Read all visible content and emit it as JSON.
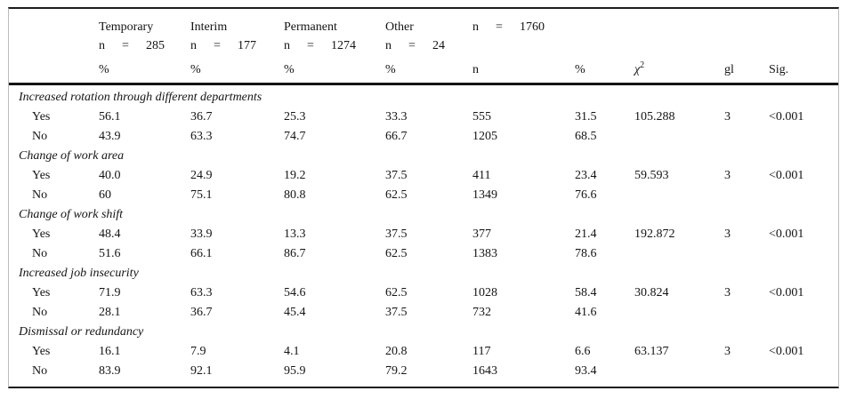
{
  "table": {
    "columns": {
      "groups": [
        {
          "label": "Temporary",
          "n_label": "n",
          "eq": "=",
          "n_value": "285"
        },
        {
          "label": "Interim",
          "n_label": "n",
          "eq": "=",
          "n_value": "177"
        },
        {
          "label": "Permanent",
          "n_label": "n",
          "eq": "=",
          "n_value": "1274"
        },
        {
          "label": "Other",
          "n_label": "n",
          "eq": "=",
          "n_value": "24"
        }
      ],
      "total": {
        "n_label": "n",
        "eq": "=",
        "n_value": "1760"
      },
      "subheader": {
        "pct1": "%",
        "pct2": "%",
        "pct3": "%",
        "pct4": "%",
        "n": "n",
        "pct_total": "%",
        "chi_symbol": "χ",
        "chi_sup": "2",
        "gl": "gl",
        "sig": "Sig."
      }
    },
    "sections": [
      {
        "title": "Increased rotation through different departments",
        "rows": [
          {
            "label": "Yes",
            "temporary": "56.1",
            "interim": "36.7",
            "permanent": "25.3",
            "other": "33.3",
            "n": "555",
            "pct": "31.5",
            "chi2": "105.288",
            "gl": "3",
            "sig": "<0.001"
          },
          {
            "label": "No",
            "temporary": "43.9",
            "interim": "63.3",
            "permanent": "74.7",
            "other": "66.7",
            "n": "1205",
            "pct": "68.5",
            "chi2": "",
            "gl": "",
            "sig": ""
          }
        ]
      },
      {
        "title": "Change of work area",
        "rows": [
          {
            "label": "Yes",
            "temporary": "40.0",
            "interim": "24.9",
            "permanent": "19.2",
            "other": "37.5",
            "n": "411",
            "pct": "23.4",
            "chi2": "59.593",
            "gl": "3",
            "sig": "<0.001"
          },
          {
            "label": "No",
            "temporary": "60",
            "interim": "75.1",
            "permanent": "80.8",
            "other": "62.5",
            "n": "1349",
            "pct": "76.6",
            "chi2": "",
            "gl": "",
            "sig": ""
          }
        ]
      },
      {
        "title": "Change of work shift",
        "rows": [
          {
            "label": "Yes",
            "temporary": "48.4",
            "interim": "33.9",
            "permanent": "13.3",
            "other": "37.5",
            "n": "377",
            "pct": "21.4",
            "chi2": "192.872",
            "gl": "3",
            "sig": "<0.001"
          },
          {
            "label": "No",
            "temporary": "51.6",
            "interim": "66.1",
            "permanent": "86.7",
            "other": "62.5",
            "n": "1383",
            "pct": "78.6",
            "chi2": "",
            "gl": "",
            "sig": ""
          }
        ]
      },
      {
        "title": "Increased job insecurity",
        "rows": [
          {
            "label": "Yes",
            "temporary": "71.9",
            "interim": "63.3",
            "permanent": "54.6",
            "other": "62.5",
            "n": "1028",
            "pct": "58.4",
            "chi2": "30.824",
            "gl": "3",
            "sig": "<0.001"
          },
          {
            "label": "No",
            "temporary": "28.1",
            "interim": "36.7",
            "permanent": "45.4",
            "other": "37.5",
            "n": "732",
            "pct": "41.6",
            "chi2": "",
            "gl": "",
            "sig": ""
          }
        ]
      },
      {
        "title": "Dismissal or redundancy",
        "rows": [
          {
            "label": "Yes",
            "temporary": "16.1",
            "interim": "7.9",
            "permanent": "4.1",
            "other": "20.8",
            "n": "117",
            "pct": "6.6",
            "chi2": "63.137",
            "gl": "3",
            "sig": "<0.001"
          },
          {
            "label": "No",
            "temporary": "83.9",
            "interim": "92.1",
            "permanent": "95.9",
            "other": "79.2",
            "n": "1643",
            "pct": "93.4",
            "chi2": "",
            "gl": "",
            "sig": ""
          }
        ]
      }
    ]
  }
}
